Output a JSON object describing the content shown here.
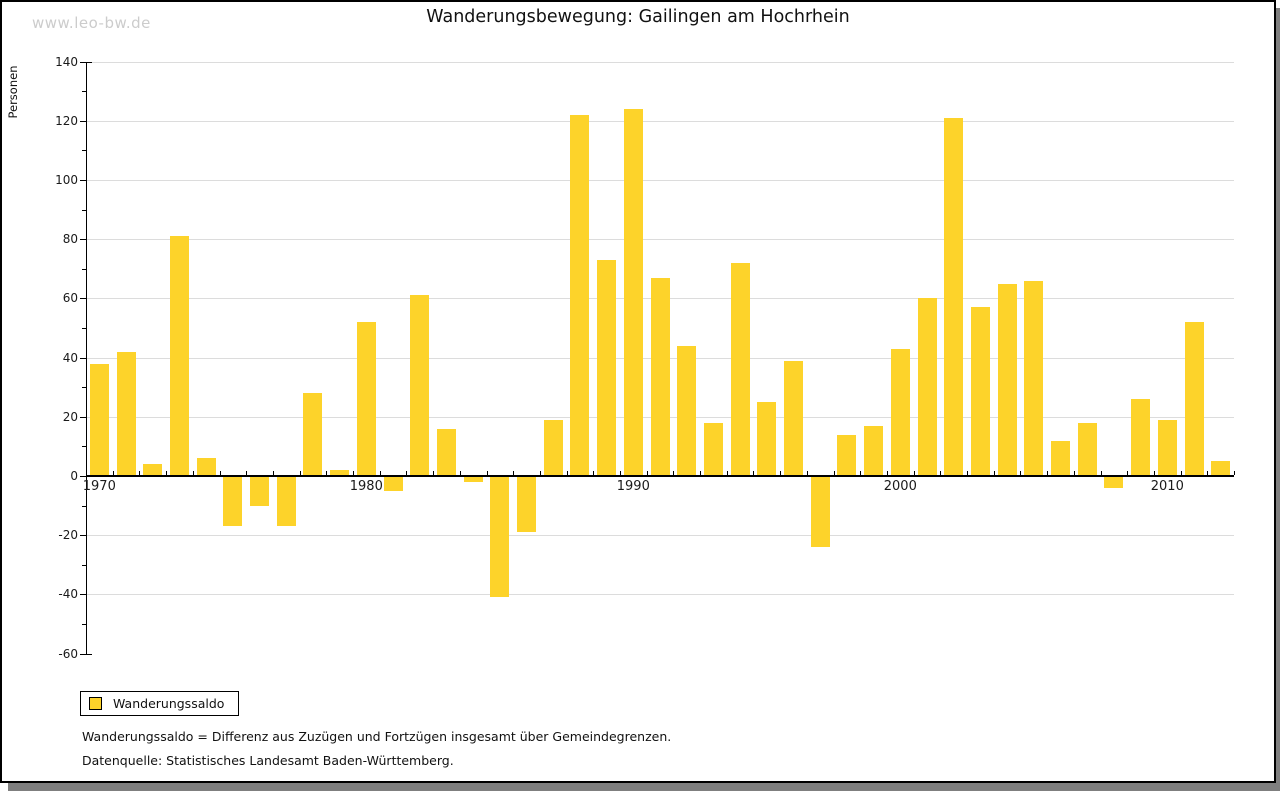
{
  "watermark": "www.leo-bw.de",
  "header": {
    "title": "Wanderungsbewegung: Gailingen am Hochrhein"
  },
  "legend": {
    "label": "Wanderungssaldo"
  },
  "footnotes": {
    "definition": "Wanderungssaldo = Differenz aus Zuzügen und Fortzügen insgesamt über Gemeindegrenzen.",
    "source": "Datenquelle: Statistisches Landesamt Baden-Württemberg."
  },
  "colors": {
    "bar": "#FDD32A",
    "gridline": "#DCDCDC",
    "axis": "#000000",
    "watermark": "#CCCCCC",
    "shadow": "#7F7F7F",
    "text": "#111111"
  },
  "chart_data": {
    "type": "bar",
    "title": "Wanderungsbewegung: Gailingen am Hochrhein",
    "ylabel": "Personen",
    "xlabel": "",
    "series_name": "Wanderungssaldo",
    "ylim": [
      -60,
      140
    ],
    "grid": true,
    "legend_position": "bottom-left",
    "y_ticks": [
      140,
      120,
      100,
      80,
      60,
      40,
      20,
      0,
      -20,
      -40,
      -60
    ],
    "y_minor_tick_step": 10,
    "x_tick_labels": [
      1970,
      1980,
      1990,
      2000,
      2010
    ],
    "years": [
      1970,
      1971,
      1972,
      1973,
      1974,
      1975,
      1976,
      1977,
      1978,
      1979,
      1980,
      1981,
      1982,
      1983,
      1984,
      1985,
      1986,
      1987,
      1988,
      1989,
      1990,
      1991,
      1992,
      1993,
      1994,
      1995,
      1996,
      1997,
      1998,
      1999,
      2000,
      2001,
      2002,
      2003,
      2004,
      2005,
      2006,
      2007,
      2008,
      2009,
      2010,
      2011,
      2012
    ],
    "values": [
      38,
      42,
      4,
      81,
      6,
      -17,
      -10,
      -17,
      28,
      2,
      52,
      -5,
      61,
      16,
      -2,
      -41,
      -19,
      19,
      122,
      73,
      124,
      67,
      44,
      18,
      72,
      25,
      39,
      -24,
      14,
      17,
      43,
      60,
      121,
      57,
      65,
      66,
      12,
      18,
      -4,
      26,
      19,
      52,
      5
    ]
  }
}
